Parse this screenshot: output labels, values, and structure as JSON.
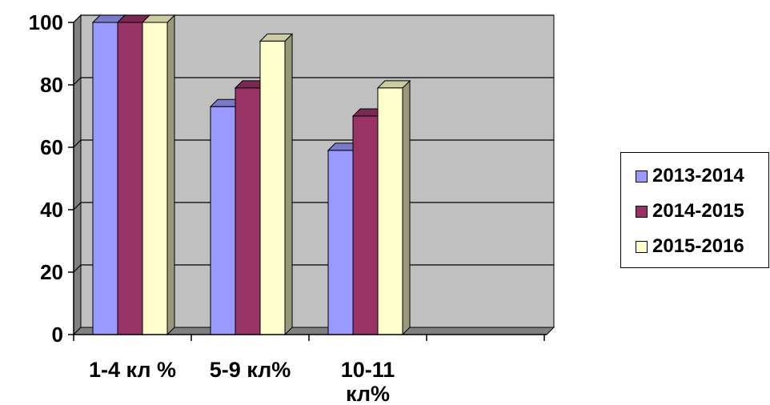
{
  "chart_data": {
    "type": "bar",
    "categories": [
      "1-4 кл %",
      "5-9 кл%",
      "10-11 кл%"
    ],
    "category_lines": [
      [
        "1-4 кл %"
      ],
      [
        "5-9 кл%"
      ],
      [
        "10-11",
        "кл%"
      ]
    ],
    "series": [
      {
        "name": "2013-2014",
        "values": [
          100,
          73,
          59
        ],
        "color": "#9999ff"
      },
      {
        "name": "2014-2015",
        "values": [
          100,
          79,
          70
        ],
        "color": "#993366"
      },
      {
        "name": "2015-2016",
        "values": [
          100,
          94,
          79
        ],
        "color": "#ffffcc"
      }
    ],
    "ylim": [
      0,
      100
    ],
    "yticks": [
      "0",
      "20",
      "40",
      "60",
      "80",
      "100"
    ],
    "grid": true,
    "legend_position": "right",
    "colors": {
      "wall": "#c0c0c0",
      "floor": "#808080",
      "grid": "#000000"
    }
  },
  "legend": {
    "items": [
      {
        "label": "2013-2014"
      },
      {
        "label": "2014-2015"
      },
      {
        "label": "2015-2016"
      }
    ]
  }
}
